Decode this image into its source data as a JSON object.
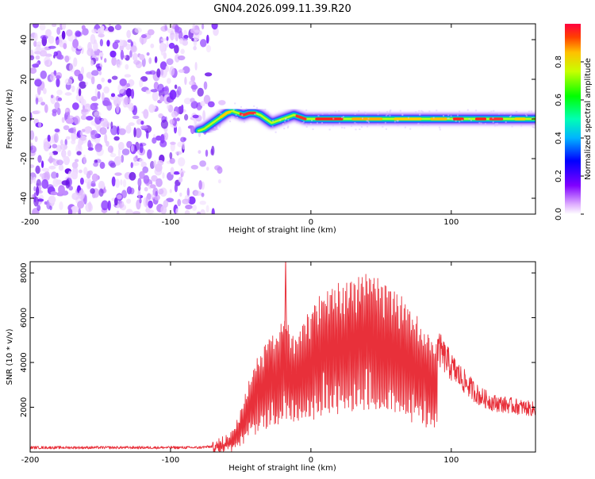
{
  "title": "GN04.2026.099.11.39.R20",
  "colors": {
    "snr_line": "#e8303a",
    "ridge": "#ff1a1a",
    "noise": "#7b2cff"
  },
  "chart_data": [
    {
      "type": "heatmap",
      "name": "spectrogram",
      "xlabel": "Height of straight line (km)",
      "ylabel": "Frequency (Hz)",
      "xlim": [
        -200,
        160
      ],
      "ylim": [
        -48,
        48
      ],
      "x_ticks": [
        -200,
        -100,
        0,
        100
      ],
      "y_ticks": [
        40,
        20,
        0,
        -20,
        -40
      ],
      "noise_region_x": [
        -200,
        -65
      ],
      "ridge": {
        "x": [
          -80,
          -76,
          -72,
          -68,
          -64,
          -60,
          -56,
          -52,
          -48,
          -44,
          -40,
          -36,
          -32,
          -28,
          -24,
          -20,
          -16,
          -12,
          -8,
          -4,
          0,
          10,
          20,
          40,
          60,
          80,
          100,
          120,
          140,
          160
        ],
        "y": [
          -6,
          -5,
          -3,
          -1,
          1,
          3,
          4,
          3,
          2,
          3,
          3,
          2,
          0,
          -2,
          -1,
          0,
          1,
          2,
          1,
          0,
          0,
          0,
          0,
          0,
          0,
          0,
          0,
          0,
          0,
          0
        ]
      },
      "colorbar": {
        "label": "Normalized spectral amplitude",
        "range": [
          0,
          1
        ],
        "ticks": [
          0.0,
          0.2,
          0.4,
          0.6,
          0.8
        ]
      }
    },
    {
      "type": "line",
      "name": "snr",
      "xlabel": "Height of straight line (km)",
      "ylabel": "SNR (10 * v/v)",
      "xlim": [
        -200,
        160
      ],
      "ylim": [
        0,
        8500
      ],
      "x_ticks": [
        -200,
        -100,
        0,
        100
      ],
      "y_ticks": [
        8000,
        6000,
        4000,
        2000
      ],
      "envelope": {
        "x": [
          -200,
          -80,
          -70,
          -64,
          -60,
          -55,
          -50,
          -45,
          -40,
          -35,
          -30,
          -25,
          -20,
          -15,
          -10,
          -5,
          0,
          10,
          20,
          30,
          40,
          50,
          60,
          70,
          80,
          85,
          90,
          100,
          110,
          120,
          130,
          140,
          150,
          160
        ],
        "y": [
          200,
          200,
          250,
          400,
          700,
          1000,
          1800,
          2800,
          3800,
          4600,
          5200,
          5000,
          6200,
          5500,
          5000,
          6000,
          6500,
          7000,
          7400,
          7700,
          8000,
          7500,
          7000,
          6400,
          5500,
          5000,
          4700,
          3800,
          3100,
          2500,
          2200,
          2100,
          2000,
          1900
        ]
      }
    }
  ]
}
